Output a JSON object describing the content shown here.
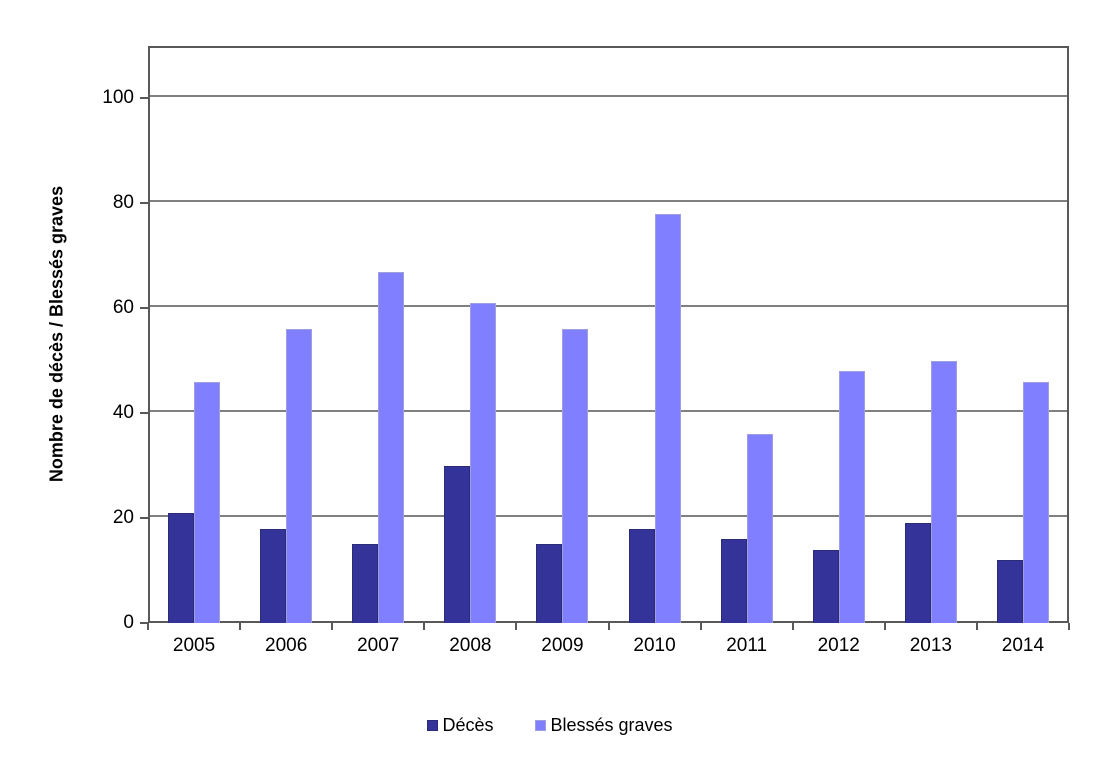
{
  "chart_data": {
    "type": "bar",
    "categories": [
      "2005",
      "2006",
      "2007",
      "2008",
      "2009",
      "2010",
      "2011",
      "2012",
      "2013",
      "2014"
    ],
    "series": [
      {
        "name": "Décès",
        "color": "#333399",
        "border_color": "#2b2b78",
        "values": [
          21,
          18,
          15,
          30,
          15,
          18,
          16,
          14,
          19,
          12
        ]
      },
      {
        "name": "Blessés graves",
        "color": "#7f7fff",
        "border_color": "#9f9fdf",
        "values": [
          46,
          56,
          67,
          61,
          56,
          78,
          36,
          48,
          50,
          46
        ]
      }
    ],
    "title": "",
    "xlabel": "",
    "ylabel": "Nombre de décès / Blessés graves",
    "ylim": [
      0,
      110
    ],
    "yticks": [
      0,
      20,
      40,
      60,
      80,
      100
    ],
    "grid": true,
    "legend_position": "bottom",
    "frame_color": "#595959",
    "gridline_color": "#808080"
  }
}
